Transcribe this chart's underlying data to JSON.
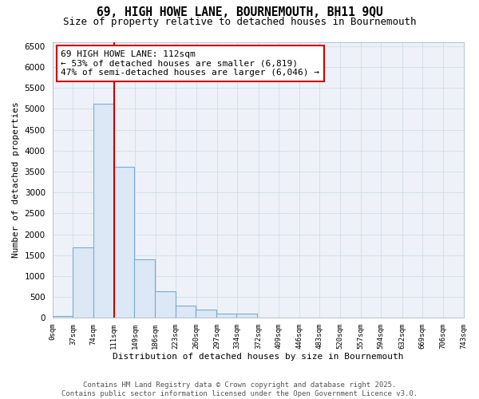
{
  "title_line1": "69, HIGH HOWE LANE, BOURNEMOUTH, BH11 9QU",
  "title_line2": "Size of property relative to detached houses in Bournemouth",
  "xlabel": "Distribution of detached houses by size in Bournemouth",
  "ylabel": "Number of detached properties",
  "bar_edges": [
    0,
    37,
    74,
    111,
    148,
    185,
    222,
    259,
    296,
    333,
    370,
    407,
    444,
    481,
    518,
    555,
    592,
    629,
    666,
    703,
    740
  ],
  "bar_heights": [
    50,
    1680,
    5120,
    3620,
    1400,
    640,
    300,
    200,
    110,
    100,
    0,
    0,
    0,
    0,
    0,
    0,
    0,
    0,
    0,
    0
  ],
  "bar_color": "#dce8f5",
  "bar_edgecolor": "#7aabcf",
  "bar_linewidth": 0.8,
  "vline_x": 112,
  "vline_color": "#cc0000",
  "vline_linewidth": 1.5,
  "annotation_text": "69 HIGH HOWE LANE: 112sqm\n← 53% of detached houses are smaller (6,819)\n47% of semi-detached houses are larger (6,046) →",
  "annotation_box_edgecolor": "#cc0000",
  "annotation_box_facecolor": "#ffffff",
  "xlim": [
    0,
    743
  ],
  "ylim": [
    0,
    6600
  ],
  "yticks": [
    0,
    500,
    1000,
    1500,
    2000,
    2500,
    3000,
    3500,
    4000,
    4500,
    5000,
    5500,
    6000,
    6500
  ],
  "xtick_labels": [
    "0sqm",
    "37sqm",
    "74sqm",
    "111sqm",
    "149sqm",
    "186sqm",
    "223sqm",
    "260sqm",
    "297sqm",
    "334sqm",
    "372sqm",
    "409sqm",
    "446sqm",
    "483sqm",
    "520sqm",
    "557sqm",
    "594sqm",
    "632sqm",
    "669sqm",
    "706sqm",
    "743sqm"
  ],
  "xtick_positions": [
    0,
    37,
    74,
    111,
    149,
    186,
    223,
    260,
    297,
    334,
    372,
    409,
    446,
    483,
    520,
    557,
    594,
    632,
    669,
    706,
    743
  ],
  "grid_color": "#d0dce8",
  "bg_color": "#ffffff",
  "plot_bg_color": "#eef2f8",
  "title_fontsize": 10.5,
  "subtitle_fontsize": 9,
  "annotation_fontsize": 8,
  "footer_text": "Contains HM Land Registry data © Crown copyright and database right 2025.\nContains public sector information licensed under the Open Government Licence v3.0.",
  "footer_fontsize": 6.5
}
